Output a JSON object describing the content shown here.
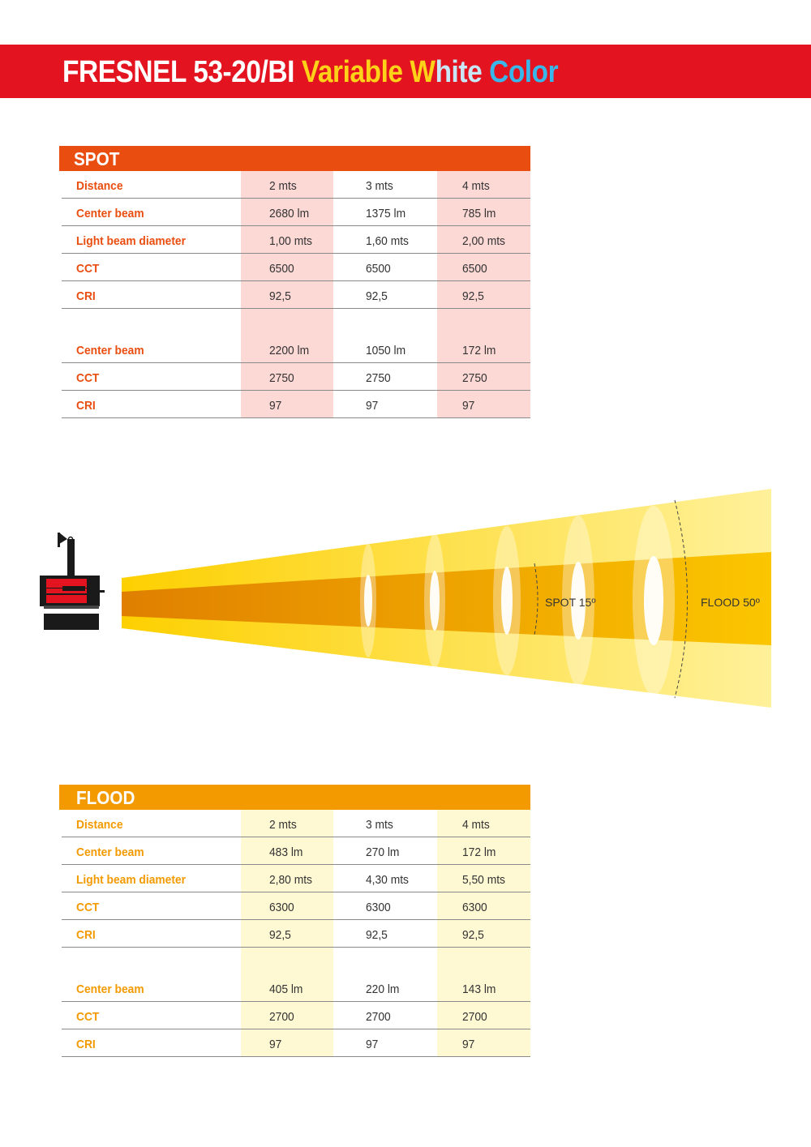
{
  "header": {
    "title_main": "FRESNEL 53-20/BI ",
    "title_variable": "Variable ",
    "title_w": "W",
    "title_hite": "hite ",
    "title_color": "Color",
    "colors": {
      "bar": "#e3141f",
      "white": "#ffffff",
      "yellow": "#ffd21a",
      "blue": "#39b6ea"
    }
  },
  "spot": {
    "heading": "SPOT",
    "color": "#e94e10",
    "rows_a": [
      {
        "label": "Distance",
        "v": [
          "2 mts",
          "3 mts",
          "4 mts"
        ]
      },
      {
        "label": "Center beam",
        "v": [
          "2680 lm",
          "1375 lm",
          "785 lm"
        ]
      },
      {
        "label": "Light beam diameter",
        "v": [
          "1,00 mts",
          "1,60 mts",
          "2,00 mts"
        ]
      },
      {
        "label": "CCT",
        "v": [
          "6500",
          "6500",
          "6500"
        ]
      },
      {
        "label": "CRI",
        "v": [
          "92,5",
          "92,5",
          "92,5"
        ]
      }
    ],
    "rows_b": [
      {
        "label": "Center beam",
        "v": [
          "2200 lm",
          "1050 lm",
          "172 lm"
        ]
      },
      {
        "label": "CCT",
        "v": [
          "2750",
          "2750",
          "2750"
        ]
      },
      {
        "label": "CRI",
        "v": [
          "97",
          "97",
          "97"
        ]
      }
    ]
  },
  "diagram": {
    "spot_label": "SPOT 15º",
    "flood_label": "FLOOD 50º",
    "fixture_icon": "fresnel-light-icon"
  },
  "flood": {
    "heading": "FLOOD",
    "color": "#f29a00",
    "rows_a": [
      {
        "label": "Distance",
        "v": [
          "2 mts",
          "3 mts",
          "4 mts"
        ]
      },
      {
        "label": "Center beam",
        "v": [
          "483 lm",
          "270 lm",
          "172 lm"
        ]
      },
      {
        "label": "Light beam diameter",
        "v": [
          "2,80 mts",
          "4,30 mts",
          "5,50 mts"
        ]
      },
      {
        "label": "CCT",
        "v": [
          "6300",
          "6300",
          "6300"
        ]
      },
      {
        "label": "CRI",
        "v": [
          "92,5",
          "92,5",
          "92,5"
        ]
      }
    ],
    "rows_b": [
      {
        "label": "Center beam",
        "v": [
          "405 lm",
          "220 lm",
          "143 lm"
        ]
      },
      {
        "label": "CCT",
        "v": [
          "2700",
          "2700",
          "2700"
        ]
      },
      {
        "label": "CRI",
        "v": [
          "97",
          "97",
          "97"
        ]
      }
    ]
  }
}
